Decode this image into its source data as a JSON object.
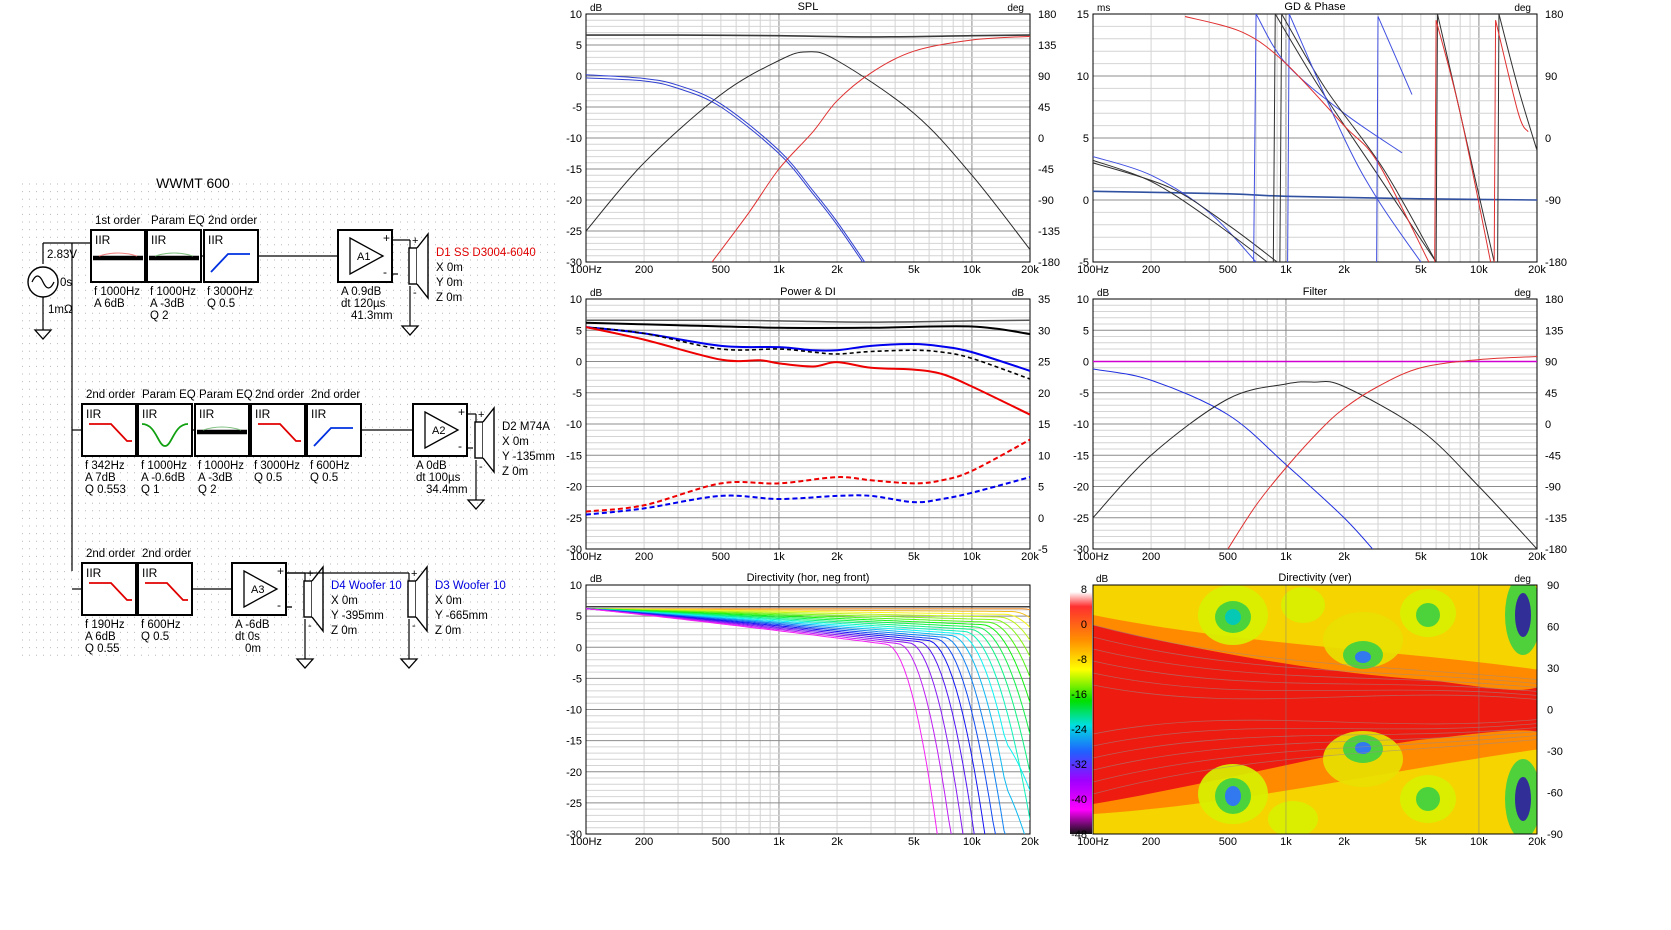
{
  "schematic": {
    "title": "WWMT 600",
    "source": {
      "voltage": "2.83V",
      "delay": "0s",
      "impedance": "1mΩ"
    },
    "rows": [
      {
        "blocks": [
          {
            "header": "1st order",
            "type": "IIR",
            "curve": "shelf",
            "params": [
              "f  1000Hz",
              "A  6dB"
            ]
          },
          {
            "header": "Param EQ",
            "type": "IIR",
            "curve": "peq-flat",
            "params": [
              "f  1000Hz",
              "A  -3dB",
              "Q  2"
            ]
          },
          {
            "header": "2nd order",
            "type": "IIR",
            "curve": "highpass",
            "params": [
              "f  3000Hz",
              "Q  0.5"
            ]
          }
        ],
        "amp": {
          "name": "A1",
          "params": [
            "A  0.9dB",
            "dt 120µs",
            "41.3mm"
          ]
        },
        "drivers": [
          {
            "name": "D1 SS D3004-6040",
            "color": "#e00000",
            "params": [
              "X 0m",
              "Y 0m",
              "Z 0m"
            ]
          }
        ]
      },
      {
        "blocks": [
          {
            "header": "2nd order",
            "type": "IIR",
            "curve": "lowpass",
            "params": [
              "f  342Hz",
              "A  7dB",
              "Q  0.553"
            ]
          },
          {
            "header": "Param EQ",
            "type": "IIR",
            "curve": "peq-dip",
            "params": [
              "f  1000Hz",
              "A  -0.6dB",
              "Q  1"
            ]
          },
          {
            "header": "Param EQ",
            "type": "IIR",
            "curve": "peq-flat",
            "params": [
              "f  1000Hz",
              "A  -3dB",
              "Q  2"
            ]
          },
          {
            "header": "2nd order",
            "type": "IIR",
            "curve": "lowpass",
            "params": [
              "f  3000Hz",
              "Q  0.5"
            ]
          },
          {
            "header": "2nd order",
            "type": "IIR",
            "curve": "highpass",
            "params": [
              "f  600Hz",
              "Q  0.5"
            ]
          }
        ],
        "amp": {
          "name": "A2",
          "params": [
            "A  0dB",
            "dt 100µs",
            "34.4mm"
          ]
        },
        "drivers": [
          {
            "name": "D2 M74A",
            "color": "#000000",
            "params": [
              "X 0m",
              "Y -135mm",
              "Z 0m"
            ]
          }
        ]
      },
      {
        "blocks": [
          {
            "header": "2nd order",
            "type": "IIR",
            "curve": "lowpass",
            "params": [
              "f  190Hz",
              "A  6dB",
              "Q  0.55"
            ]
          },
          {
            "header": "2nd order",
            "type": "IIR",
            "curve": "lowpass",
            "params": [
              "f  600Hz",
              "Q  0.5"
            ]
          }
        ],
        "amp": {
          "name": "A3",
          "params": [
            "A  -6dB",
            "dt 0s",
            "0m"
          ]
        },
        "drivers": [
          {
            "name": "D4 Woofer 10",
            "color": "#0000e0",
            "params": [
              "X 0m",
              "Y -395mm",
              "Z 0m"
            ]
          },
          {
            "name": "D3 Woofer 10",
            "color": "#0000e0",
            "params": [
              "X 0m",
              "Y -665mm",
              "Z 0m"
            ]
          }
        ]
      }
    ]
  },
  "x_ticks": [
    "100Hz",
    "200",
    "500",
    "1k",
    "2k",
    "5k",
    "10k",
    "20k"
  ],
  "chart_data": [
    {
      "type": "line",
      "title": "SPL",
      "ylabel": "dB",
      "y2label": "deg",
      "ylim": [
        -30,
        10
      ],
      "y2lim": [
        -180,
        180
      ],
      "xscale": "log",
      "xlim": [
        100,
        20000
      ],
      "yticks": [
        "10",
        "5",
        "0",
        "-5",
        "-10",
        "-15",
        "-20",
        "-25",
        "-30"
      ],
      "y2ticks": [
        "180",
        "135",
        "90",
        "45",
        "0",
        "-45",
        "-90",
        "-135",
        "-180"
      ],
      "grid": true,
      "series": [
        {
          "color": "#3a3a3a",
          "width": 1.6,
          "x": [
            100,
            300,
            1000,
            3000,
            10000,
            20000
          ],
          "y": [
            6.6,
            6.6,
            6.5,
            6.3,
            6.5,
            6.6
          ]
        },
        {
          "color": "#2a2a2a",
          "width": 1,
          "x": [
            100,
            200,
            500,
            1000,
            1400,
            2000,
            5000,
            10000,
            20000
          ],
          "y": [
            -25,
            -14,
            -3,
            2.5,
            3.9,
            2.5,
            -6,
            -16,
            -28
          ]
        },
        {
          "color": "#3040d0",
          "width": 1,
          "x": [
            100,
            200,
            300,
            500,
            1000,
            1500,
            2000,
            3000
          ],
          "y": [
            -0.3,
            -0.8,
            -2,
            -5,
            -12.5,
            -19,
            -24,
            -32
          ]
        },
        {
          "color": "#3040d0",
          "width": 1,
          "x": [
            100,
            200,
            300,
            500,
            1000,
            1500,
            2000,
            3000
          ],
          "y": [
            0.2,
            -0.4,
            -1.5,
            -4.5,
            -12,
            -18.5,
            -23.5,
            -31.5
          ]
        },
        {
          "color": "#e03030",
          "width": 1,
          "x": [
            450,
            700,
            1000,
            1500,
            2000,
            3000,
            5000,
            10000,
            20000
          ],
          "y": [
            -30,
            -22,
            -15,
            -9,
            -4,
            0.5,
            4,
            5.8,
            6.4
          ]
        }
      ]
    },
    {
      "type": "line",
      "title": "GD & Phase",
      "ylabel": "ms",
      "y2label": "deg",
      "ylim": [
        -5,
        15
      ],
      "y2lim": [
        -180,
        180
      ],
      "xscale": "log",
      "xlim": [
        100,
        20000
      ],
      "yticks": [
        "15",
        "10",
        "5",
        "0",
        "-5"
      ],
      "y2ticks": [
        "180",
        "90",
        "0",
        "-90",
        "-180"
      ],
      "grid": true,
      "series": [
        {
          "color": "#3050a0",
          "width": 1.6,
          "x": [
            100,
            500,
            1000,
            5000,
            20000
          ],
          "y": [
            0.7,
            0.5,
            0.3,
            0.1,
            0
          ]
        },
        {
          "color": "#4050e0",
          "width": 1,
          "x": [
            100,
            200,
            400,
            700
          ],
          "y": [
            3.5,
            2,
            -1,
            -5
          ]
        },
        {
          "color": "#303030",
          "width": 1,
          "x": [
            100,
            200,
            400,
            800
          ],
          "y": [
            3.2,
            1.5,
            -1.5,
            -5
          ]
        },
        {
          "color": "#303030",
          "width": 1,
          "x": [
            100,
            250,
            500,
            900
          ],
          "y": [
            3,
            1,
            -2,
            -5
          ]
        },
        {
          "color": "#4050e0",
          "width": 1,
          "x": [
            680,
            700
          ],
          "y": [
            -5,
            15
          ]
        },
        {
          "color": "#303030",
          "width": 1,
          "x": [
            860,
            880
          ],
          "y": [
            -5,
            15
          ]
        },
        {
          "color": "#303030",
          "width": 1,
          "x": [
            930,
            950
          ],
          "y": [
            -5,
            15
          ]
        },
        {
          "color": "#4050e0",
          "width": 1,
          "x": [
            1020,
            1040
          ],
          "y": [
            -5,
            15
          ]
        },
        {
          "color": "#4050e0",
          "width": 1,
          "x": [
            700,
            1000,
            2000,
            4000
          ],
          "y": [
            15,
            11,
            7,
            3.8
          ]
        },
        {
          "color": "#303030",
          "width": 1,
          "x": [
            880,
            1500,
            3000,
            6000
          ],
          "y": [
            15,
            9,
            2,
            -5
          ]
        },
        {
          "color": "#303030",
          "width": 1,
          "x": [
            950,
            1600,
            3200,
            6000
          ],
          "y": [
            15,
            9,
            2.5,
            -5
          ]
        },
        {
          "color": "#e03030",
          "width": 1,
          "x": [
            300,
            600,
            1000,
            2000,
            3000,
            5500
          ],
          "y": [
            14.8,
            13.5,
            11,
            6,
            3,
            -5
          ]
        },
        {
          "color": "#4050e0",
          "width": 1,
          "x": [
            1040,
            2000,
            3000,
            5000
          ],
          "y": [
            15,
            5,
            0,
            -5
          ]
        },
        {
          "color": "#4050e0",
          "width": 1,
          "x": [
            2950,
            3000
          ],
          "y": [
            -5,
            14.8
          ]
        },
        {
          "color": "#4050e0",
          "width": 1,
          "x": [
            3000,
            4500
          ],
          "y": [
            14.8,
            8.5
          ]
        },
        {
          "color": "#303030",
          "width": 1,
          "x": [
            6000,
            6100
          ],
          "y": [
            -5,
            15
          ]
        },
        {
          "color": "#e03030",
          "width": 1,
          "x": [
            5900,
            6000
          ],
          "y": [
            -5,
            14.5
          ]
        },
        {
          "color": "#303030",
          "width": 1,
          "x": [
            6100,
            8000,
            12000
          ],
          "y": [
            15,
            7,
            -5
          ]
        },
        {
          "color": "#e03030",
          "width": 1,
          "x": [
            6000,
            8000,
            11500
          ],
          "y": [
            14.5,
            7,
            -5
          ]
        },
        {
          "color": "#303030",
          "width": 1,
          "x": [
            12500,
            12700
          ],
          "y": [
            -5,
            15
          ]
        },
        {
          "color": "#e03030",
          "width": 1,
          "x": [
            12000,
            12200
          ],
          "y": [
            -5,
            14.5
          ]
        },
        {
          "color": "#303030",
          "width": 1,
          "x": [
            12700,
            16000,
            20000
          ],
          "y": [
            15,
            9,
            4
          ]
        },
        {
          "color": "#e03030",
          "width": 1,
          "x": [
            12200,
            16000,
            18000
          ],
          "y": [
            14.5,
            7,
            5.5
          ]
        }
      ]
    },
    {
      "type": "line",
      "title": "Power & DI",
      "ylabel": "dB",
      "y2label": "dB",
      "ylim": [
        -30,
        10
      ],
      "y2lim": [
        -5,
        35
      ],
      "xscale": "log",
      "xlim": [
        100,
        20000
      ],
      "yticks": [
        "10",
        "5",
        "0",
        "-5",
        "-10",
        "-15",
        "-20",
        "-25",
        "-30"
      ],
      "y2ticks": [
        "35",
        "30",
        "25",
        "20",
        "15",
        "10",
        "5",
        "0",
        "-5"
      ],
      "grid": true,
      "series": [
        {
          "color": "#555555",
          "width": 1.5,
          "x": [
            100,
            500,
            1000,
            3000,
            10000,
            20000
          ],
          "y": [
            6.6,
            6.6,
            6.5,
            6.3,
            6.5,
            6.6
          ]
        },
        {
          "color": "#000000",
          "width": 2,
          "x": [
            100,
            300,
            1000,
            3000,
            10000,
            20000
          ],
          "y": [
            6.2,
            5.8,
            5.4,
            5.4,
            5.6,
            4.4
          ]
        },
        {
          "color": "#0000ee",
          "width": 2,
          "x": [
            100,
            200,
            500,
            1000,
            1500,
            2000,
            3000,
            5000,
            7000,
            10000,
            20000
          ],
          "y": [
            5.5,
            4.5,
            2.5,
            2.3,
            1.8,
            1.8,
            2.5,
            2.8,
            2.4,
            1.5,
            -1.5
          ]
        },
        {
          "color": "#000000",
          "width": 1.6,
          "dash": "4,3",
          "x": [
            100,
            200,
            500,
            1000,
            1500,
            2000,
            3000,
            5000,
            7000,
            10000,
            20000
          ],
          "y": [
            5.5,
            4.5,
            2,
            2,
            1.5,
            1.2,
            1.6,
            1.8,
            1.5,
            0.5,
            -2.8
          ]
        },
        {
          "color": "#ee0000",
          "width": 2,
          "x": [
            100,
            200,
            500,
            800,
            1000,
            1500,
            2000,
            3000,
            5000,
            7000,
            10000,
            20000
          ],
          "y": [
            5.5,
            3.5,
            0.3,
            0.2,
            -0.3,
            -0.8,
            -0.1,
            -1,
            -1.3,
            -2,
            -4,
            -8.5
          ]
        },
        {
          "color": "#ee0000",
          "width": 2,
          "dash": "5,3",
          "x": [
            100,
            200,
            500,
            1000,
            2000,
            3000,
            5000,
            7000,
            10000,
            20000
          ],
          "y": [
            -24,
            -23,
            -19.5,
            -19.5,
            -18.5,
            -19,
            -19.5,
            -19,
            -17.5,
            -12.5
          ]
        },
        {
          "color": "#0000ee",
          "width": 2,
          "dash": "5,3",
          "x": [
            100,
            200,
            500,
            1000,
            2000,
            3000,
            5000,
            7000,
            10000,
            20000
          ],
          "y": [
            -24.5,
            -23.5,
            -21.5,
            -22,
            -21.5,
            -21.5,
            -22.5,
            -22,
            -21,
            -18.5
          ]
        }
      ]
    },
    {
      "type": "line",
      "title": "Filter",
      "ylabel": "dB",
      "y2label": "deg",
      "ylim": [
        -30,
        10
      ],
      "y2lim": [
        -180,
        180
      ],
      "xscale": "log",
      "xlim": [
        100,
        20000
      ],
      "yticks": [
        "10",
        "5",
        "0",
        "-5",
        "-10",
        "-15",
        "-20",
        "-25",
        "-30"
      ],
      "y2ticks": [
        "180",
        "135",
        "90",
        "45",
        "0",
        "-45",
        "-90",
        "-135",
        "-180"
      ],
      "grid": true,
      "series": [
        {
          "color": "#d000d0",
          "width": 1.5,
          "x": [
            100,
            20000
          ],
          "y": [
            0,
            0
          ]
        },
        {
          "color": "#2030e0",
          "width": 1,
          "x": [
            100,
            200,
            500,
            1000,
            2000,
            3000
          ],
          "y": [
            -1.2,
            -3,
            -8.5,
            -16.5,
            -25,
            -31
          ]
        },
        {
          "color": "#2a2a2a",
          "width": 1,
          "x": [
            100,
            200,
            500,
            1000,
            1400,
            2000,
            5000,
            10000,
            20000
          ],
          "y": [
            -25,
            -15,
            -6,
            -3.6,
            -3.3,
            -4,
            -11,
            -20,
            -30
          ]
        },
        {
          "color": "#e03030",
          "width": 1,
          "x": [
            500,
            700,
            1000,
            1500,
            2000,
            3000,
            5000,
            10000,
            20000
          ],
          "y": [
            -30,
            -23,
            -17,
            -11,
            -7.5,
            -4,
            -1,
            0.3,
            0.8
          ]
        }
      ]
    },
    {
      "type": "line",
      "title": "Directivity (hor, neg front)",
      "ylabel": "dB",
      "ylim": [
        -30,
        10
      ],
      "xscale": "log",
      "xlim": [
        100,
        20000
      ],
      "yticks": [
        "10",
        "5",
        "0",
        "-5",
        "-10",
        "-15",
        "-20",
        "-25",
        "-30"
      ],
      "grid": true,
      "curve_family": "angles"
    },
    {
      "type": "heatmap",
      "title": "Directivity (ver)",
      "ylabel": "dB",
      "y2label": "deg",
      "xscale": "log",
      "xlim": [
        100,
        20000
      ],
      "y2lim": [
        -90,
        90
      ],
      "colorbar_ticks": [
        "8",
        "0",
        "-8",
        "-16",
        "-24",
        "-32",
        "-40",
        "-48"
      ],
      "y2ticks": [
        "90",
        "60",
        "30",
        "0",
        "-30",
        "-60",
        "-90"
      ]
    }
  ]
}
